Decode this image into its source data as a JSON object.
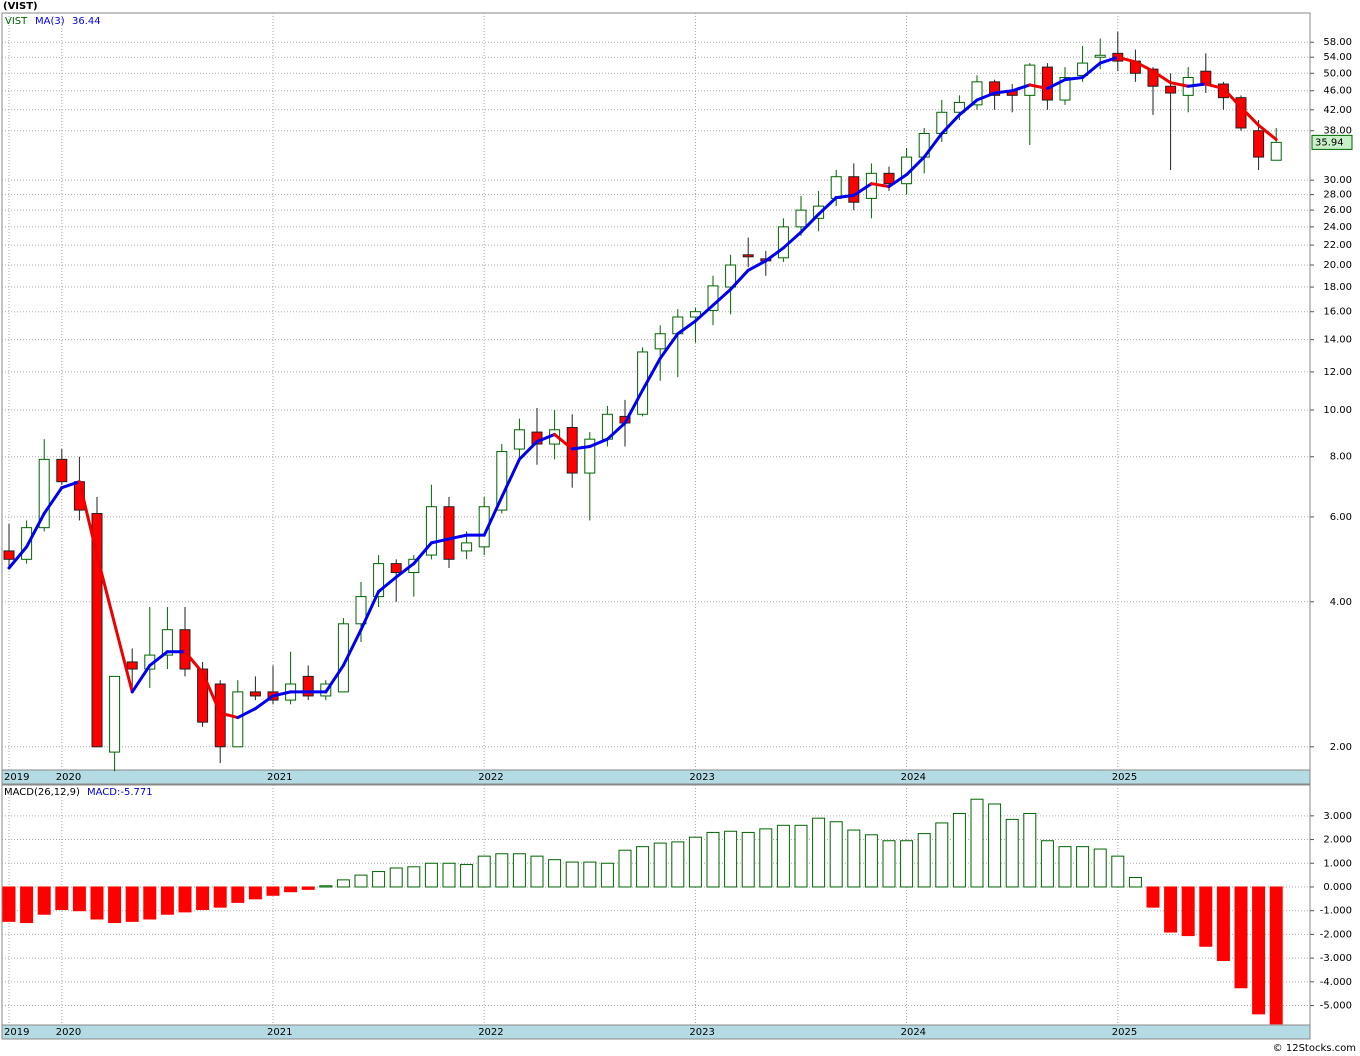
{
  "title": "(VIST)",
  "footer": "© 12Stocks.com",
  "chart_data": [
    {
      "type": "candlestick",
      "categories": [
        "2019",
        null,
        null,
        "2020",
        null,
        null,
        null,
        null,
        null,
        null,
        null,
        null,
        null,
        null,
        null,
        "2021",
        null,
        null,
        null,
        null,
        null,
        null,
        null,
        null,
        null,
        null,
        null,
        "2022",
        null,
        null,
        null,
        null,
        null,
        null,
        null,
        null,
        null,
        null,
        null,
        "2023",
        null,
        null,
        null,
        null,
        null,
        null,
        null,
        null,
        null,
        null,
        null,
        "2024",
        null,
        null,
        null,
        null,
        null,
        null,
        null,
        null,
        null,
        null,
        null,
        "2025",
        null,
        null,
        null,
        null,
        null,
        null,
        null,
        null,
        null
      ],
      "series": [
        {
          "name": "VIST",
          "up_color": "#ffffff",
          "down_color": "#ff0000",
          "up_stroke": "#006400",
          "open": [
            5.1,
            4.9,
            5.7,
            7.9,
            7.1,
            6.1,
            1.95,
            3.0,
            2.9,
            3.1,
            3.5,
            2.9,
            2.7,
            2.0,
            2.6,
            2.6,
            2.5,
            2.8,
            2.55,
            2.6,
            3.6,
            4.1,
            4.8,
            4.6,
            5.0,
            6.3,
            5.1,
            5.2,
            6.2,
            8.3,
            9.0,
            8.5,
            9.2,
            7.4,
            8.7,
            9.7,
            9.8,
            13.4,
            14.4,
            15.6,
            16.1,
            18.0,
            21.0,
            20.6,
            20.7,
            24.0,
            25.0,
            27.5,
            30.5,
            27.5,
            31.0,
            29.5,
            33.5,
            37.5,
            41.5,
            43.0,
            48.0,
            46.0,
            45.0,
            51.5,
            44.0,
            49.5,
            54.0,
            55.0,
            53.0,
            51.0,
            47.0,
            45.0,
            50.5,
            47.5,
            44.5,
            38.0,
            33.0
          ],
          "high": [
            5.8,
            5.9,
            8.7,
            8.3,
            8.0,
            6.6,
            2.8,
            3.2,
            3.9,
            3.9,
            3.9,
            3.0,
            2.75,
            2.75,
            2.8,
            2.95,
            3.15,
            2.95,
            2.75,
            3.7,
            4.4,
            5.0,
            4.9,
            5.0,
            7.0,
            6.6,
            5.6,
            6.6,
            8.5,
            9.6,
            10.1,
            10.0,
            9.8,
            9.0,
            10.2,
            10.5,
            13.5,
            15.0,
            16.2,
            16.3,
            19.0,
            21.0,
            22.8,
            21.4,
            25.0,
            27.8,
            28.5,
            31.5,
            32.5,
            32.5,
            32.0,
            35.0,
            38.5,
            44.0,
            45.0,
            49.5,
            48.5,
            47.5,
            52.5,
            52.5,
            51.5,
            57.0,
            59.0,
            61.0,
            56.0,
            51.5,
            50.0,
            51.5,
            55.0,
            48.0,
            45.0,
            40.0,
            38.5
          ],
          "low": [
            4.7,
            4.8,
            5.6,
            7.0,
            5.9,
            2.0,
            1.78,
            2.6,
            2.65,
            2.9,
            2.8,
            2.2,
            1.85,
            2.0,
            2.5,
            2.45,
            2.45,
            2.5,
            2.5,
            2.6,
            3.3,
            3.9,
            4.0,
            4.1,
            4.9,
            4.7,
            4.9,
            5.0,
            6.1,
            7.9,
            7.7,
            7.9,
            6.9,
            5.9,
            8.4,
            8.4,
            9.7,
            11.5,
            11.7,
            13.8,
            15.0,
            15.8,
            19.8,
            19.0,
            20.3,
            23.0,
            23.5,
            26.5,
            26.0,
            25.0,
            28.5,
            28.0,
            31.0,
            36.0,
            40.0,
            42.0,
            42.0,
            41.5,
            35.5,
            42.0,
            43.0,
            48.0,
            51.0,
            50.5,
            48.0,
            41.0,
            31.5,
            41.5,
            45.5,
            42.0,
            38.0,
            31.5,
            33.0
          ],
          "close": [
            4.9,
            5.7,
            7.9,
            7.1,
            6.2,
            2.0,
            2.8,
            2.9,
            3.1,
            3.5,
            2.9,
            2.25,
            2.0,
            2.6,
            2.55,
            2.5,
            2.7,
            2.55,
            2.7,
            3.6,
            4.1,
            4.8,
            4.6,
            4.9,
            6.3,
            4.9,
            5.3,
            6.3,
            8.2,
            9.1,
            8.5,
            9.1,
            7.4,
            8.7,
            9.8,
            9.4,
            13.2,
            14.4,
            15.6,
            16.0,
            18.1,
            20.0,
            20.8,
            20.4,
            24.0,
            26.0,
            26.5,
            30.5,
            27.0,
            31.0,
            29.5,
            33.5,
            37.5,
            41.5,
            43.5,
            48.0,
            45.0,
            45.0,
            52.0,
            44.0,
            49.0,
            52.5,
            54.5,
            53.0,
            50.0,
            47.0,
            45.5,
            49.0,
            47.5,
            44.5,
            38.5,
            33.5,
            35.94
          ]
        }
      ],
      "ma": {
        "name": "MA(3)",
        "up_color": "#0000ee",
        "down_color": "#ee0000",
        "values": [
          4.7,
          5.2,
          6.1,
          6.9,
          7.1,
          5.0,
          3.6,
          2.6,
          2.95,
          3.15,
          3.15,
          2.85,
          2.35,
          2.3,
          2.4,
          2.55,
          2.6,
          2.6,
          2.6,
          2.95,
          3.5,
          4.2,
          4.5,
          4.8,
          5.3,
          5.4,
          5.5,
          5.5,
          6.6,
          7.9,
          8.6,
          8.9,
          8.3,
          8.4,
          8.7,
          9.4,
          11.0,
          12.8,
          14.4,
          15.3,
          16.5,
          17.8,
          19.5,
          20.4,
          21.7,
          23.4,
          25.5,
          27.6,
          27.9,
          29.5,
          29.1,
          30.8,
          33.5,
          37.5,
          41.0,
          44.0,
          45.5,
          46.0,
          47.3,
          46.5,
          48.5,
          49.0,
          52.5,
          54.0,
          52.8,
          50.5,
          47.8,
          47.0,
          47.5,
          46.5,
          42.5,
          39.0,
          36.44
        ]
      },
      "log_scale": true,
      "ylim": [
        1.79,
        66.7
      ],
      "yticks": [
        {
          "value": 2,
          "label": "2.00"
        },
        {
          "value": 4,
          "label": "4.00"
        },
        {
          "value": 6,
          "label": "6.00"
        },
        {
          "value": 8,
          "label": "8.00"
        },
        {
          "value": 10,
          "label": "10.00"
        },
        {
          "value": 12,
          "label": "12.00"
        },
        {
          "value": 14,
          "label": "14.00"
        },
        {
          "value": 16,
          "label": "16.00"
        },
        {
          "value": 18,
          "label": "18.00"
        },
        {
          "value": 20,
          "label": "20.00"
        },
        {
          "value": 22,
          "label": "22.00"
        },
        {
          "value": 24,
          "label": "24.00"
        },
        {
          "value": 26,
          "label": "26.00"
        },
        {
          "value": 28,
          "label": "28.00"
        },
        {
          "value": 30,
          "label": "30.00"
        },
        {
          "value": 38,
          "label": "38.00"
        },
        {
          "value": 42,
          "label": "42.00"
        },
        {
          "value": 46,
          "label": "46.00"
        },
        {
          "value": 50,
          "label": "50.00"
        },
        {
          "value": 54,
          "label": "54.00"
        },
        {
          "value": 58,
          "label": "58.00"
        }
      ],
      "grid": true
    },
    {
      "type": "bar",
      "series": [
        {
          "name": "MACD(26,12,9)",
          "current_label": "MACD:",
          "pos_color": "#006400",
          "neg_color": "#ff0000",
          "values": [
            -1.45,
            -1.5,
            -1.15,
            -0.95,
            -1.0,
            -1.35,
            -1.5,
            -1.45,
            -1.35,
            -1.15,
            -1.05,
            -0.95,
            -0.85,
            -0.65,
            -0.5,
            -0.35,
            -0.2,
            -0.1,
            0.05,
            0.3,
            0.5,
            0.65,
            0.8,
            0.85,
            1.0,
            1.0,
            0.95,
            1.3,
            1.4,
            1.4,
            1.3,
            1.15,
            1.05,
            1.05,
            1.0,
            1.55,
            1.7,
            1.85,
            1.9,
            2.1,
            2.3,
            2.35,
            2.3,
            2.45,
            2.6,
            2.6,
            2.9,
            2.75,
            2.4,
            2.2,
            1.95,
            1.95,
            2.25,
            2.7,
            3.1,
            3.7,
            3.5,
            2.85,
            3.1,
            1.95,
            1.7,
            1.7,
            1.6,
            1.3,
            0.4,
            -0.85,
            -1.9,
            -2.05,
            -2.5,
            -3.1,
            -4.25,
            -5.35,
            -5.771
          ]
        }
      ],
      "ylim": [
        -5.82,
        4.3
      ],
      "yticks": [
        {
          "value": -5,
          "label": "-5.000"
        },
        {
          "value": -4,
          "label": "-4.000"
        },
        {
          "value": -3,
          "label": "-3.000"
        },
        {
          "value": -2,
          "label": "-2.000"
        },
        {
          "value": -1,
          "label": "-1.000"
        },
        {
          "value": 0,
          "label": "0.000"
        },
        {
          "value": 1,
          "label": "1.000"
        },
        {
          "value": 2,
          "label": "2.000"
        },
        {
          "value": 3,
          "label": "3.000"
        }
      ],
      "grid": true
    }
  ]
}
